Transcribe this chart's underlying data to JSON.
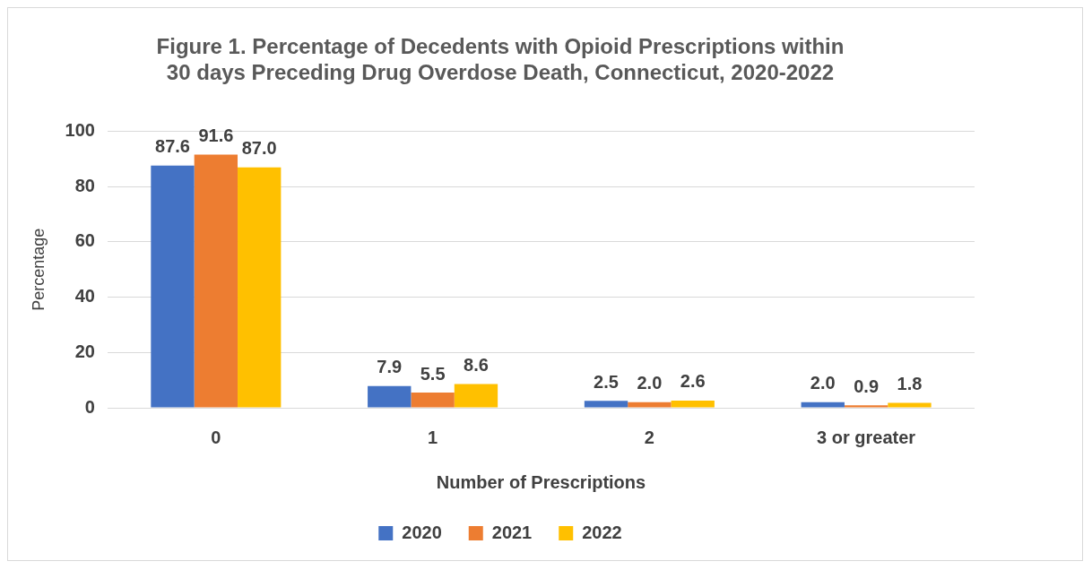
{
  "chart_data": {
    "type": "bar",
    "title": "Figure 1. Percentage of Decedents with Opioid Prescriptions within 30 days Preceding Drug Overdose Death, Connecticut, 2020-2022",
    "xlabel": "Number of Prescriptions",
    "ylabel": "Percentage",
    "categories": [
      "0",
      "1",
      "2",
      "3 or greater"
    ],
    "series": [
      {
        "name": "2020",
        "color": "#4472c4",
        "values": [
          87.6,
          7.9,
          2.5,
          2.0
        ],
        "value_labels": [
          "87.6",
          "7.9",
          "2.5",
          "2.0"
        ]
      },
      {
        "name": "2021",
        "color": "#ed7d31",
        "values": [
          91.6,
          5.5,
          2.0,
          0.9
        ],
        "value_labels": [
          "91.6",
          "5.5",
          "2.0",
          "0.9"
        ]
      },
      {
        "name": "2022",
        "color": "#ffc000",
        "values": [
          87.0,
          8.6,
          2.6,
          1.8
        ],
        "value_labels": [
          "87.0",
          "8.6",
          "2.6",
          "1.8"
        ]
      }
    ],
    "ylim": [
      0,
      100
    ],
    "yticks": [
      0,
      20,
      40,
      60,
      80,
      100
    ],
    "grid": "y",
    "legend": "bottom"
  }
}
